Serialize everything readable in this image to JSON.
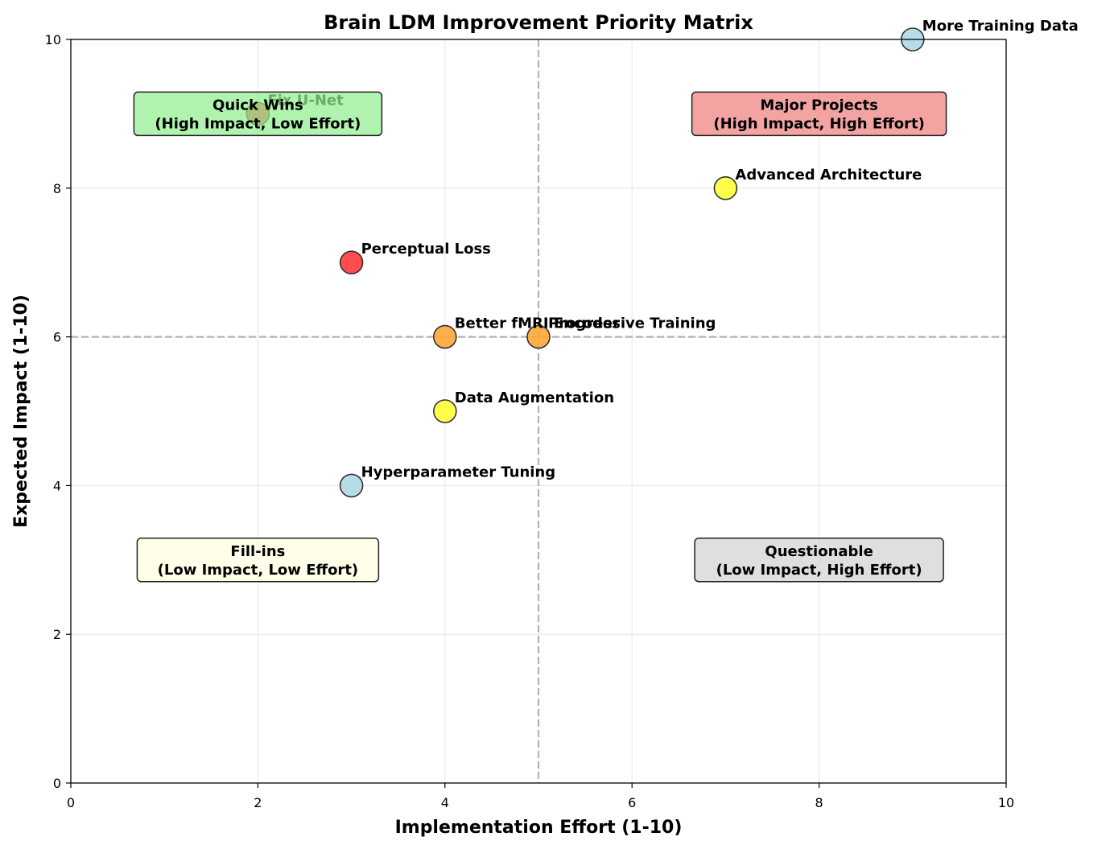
{
  "chart_data": {
    "type": "scatter",
    "title": "Brain LDM Improvement Priority Matrix",
    "xlabel": "Implementation Effort (1-10)",
    "ylabel": "Expected Impact (1-10)",
    "xlim": [
      0,
      10
    ],
    "ylim": [
      0,
      10
    ],
    "xticks": [
      0,
      2,
      4,
      6,
      8,
      10
    ],
    "yticks": [
      0,
      2,
      4,
      6,
      8,
      10
    ],
    "grid": true,
    "reference_lines": {
      "x": 5,
      "y": 6
    },
    "points": [
      {
        "label": "Fix U-Net",
        "x": 2,
        "y": 9,
        "color": "#ff3333"
      },
      {
        "label": "More Training Data",
        "x": 9,
        "y": 10,
        "color": "#add8e6"
      },
      {
        "label": "Advanced Architecture",
        "x": 7,
        "y": 8,
        "color": "#ffff33"
      },
      {
        "label": "Perceptual Loss",
        "x": 3,
        "y": 7,
        "color": "#ff3333"
      },
      {
        "label": "Better fMRI Encoder",
        "x": 4,
        "y": 6,
        "color": "#ffa533"
      },
      {
        "label": "Progressive Training",
        "x": 5,
        "y": 6,
        "color": "#ffa533"
      },
      {
        "label": "Data Augmentation",
        "x": 4,
        "y": 5,
        "color": "#ffff33"
      },
      {
        "label": "Hyperparameter Tuning",
        "x": 3,
        "y": 4,
        "color": "#add8e6"
      }
    ],
    "quadrants": [
      {
        "line1": "Quick Wins",
        "line2": "(High Impact, Low Effort)",
        "cx": 2,
        "cy": 9,
        "color": "#90ee90"
      },
      {
        "line1": "Major Projects",
        "line2": "(High Impact, High Effort)",
        "cx": 8,
        "cy": 9,
        "color": "#f08080"
      },
      {
        "line1": "Fill-ins",
        "line2": "(Low Impact, Low Effort)",
        "cx": 2,
        "cy": 3,
        "color": "#ffffe0"
      },
      {
        "line1": "Questionable",
        "line2": "(Low Impact, High Effort)",
        "cx": 8,
        "cy": 3,
        "color": "#d3d3d3"
      }
    ]
  }
}
